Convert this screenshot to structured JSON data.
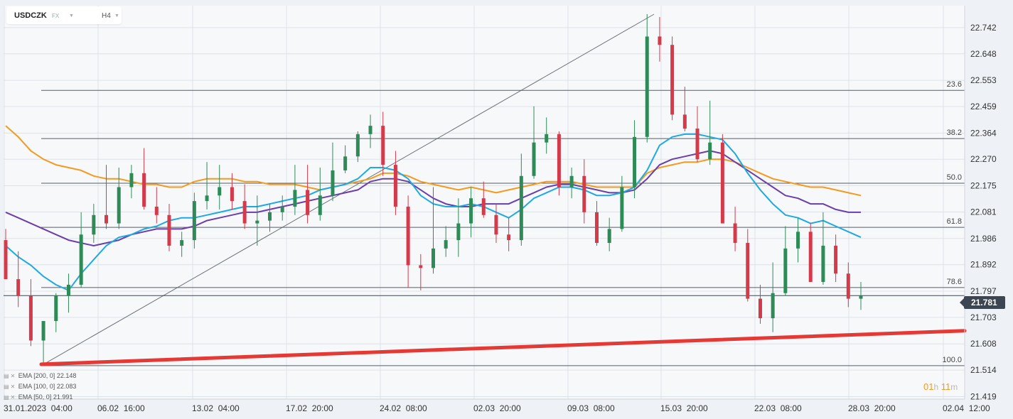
{
  "header": {
    "symbol": "USDCZK",
    "market": "FX",
    "timeframe": "H4"
  },
  "current_price": "21.781",
  "timer": {
    "hours": "01",
    "h_unit": "h",
    "minutes": "11",
    "m_unit": "m"
  },
  "legend": [
    {
      "label": "EMA [200, 0]",
      "value": "22.148"
    },
    {
      "label": "EMA [100, 0]",
      "value": "22.083"
    },
    {
      "label": "EMA [50, 0]",
      "value": "21.991"
    }
  ],
  "colors": {
    "up": "#2e8b57",
    "down": "#d33a4a",
    "ema200": "#f39a1f",
    "ema100": "#6a3fa8",
    "ema50": "#1fa9e1",
    "trendline": "#e53935",
    "grid": "#dde2e8",
    "fib": "#555e68"
  },
  "chart_data": {
    "type": "candlestick",
    "y_range": [
      21.41,
      22.79
    ],
    "y_ticks": [
      "22.742",
      "22.648",
      "22.553",
      "22.459",
      "22.364",
      "22.270",
      "22.175",
      "22.081",
      "21.986",
      "21.892",
      "21.797",
      "21.703",
      "21.608",
      "21.514",
      "21.419"
    ],
    "x_labels": [
      "31.01.2023  04:00",
      "06.02  16:00",
      "13.02  04:00",
      "17.02  20:00",
      "24.02  08:00",
      "02.03  20:00",
      "09.03  08:00",
      "15.03  20:00",
      "22.03  08:00",
      "28.03  20:00",
      "02.04  12:00"
    ],
    "fib_levels": [
      {
        "label": "23.6",
        "value": 22.517
      },
      {
        "label": "38.2",
        "value": 22.344
      },
      {
        "label": "50.0",
        "value": 22.184
      },
      {
        "label": "61.8",
        "value": 22.026
      },
      {
        "label": "78.6",
        "value": 21.81
      },
      {
        "label": "100.0",
        "value": 21.53
      }
    ],
    "fib_swing": {
      "from_value": 21.53,
      "to_value": 22.79
    },
    "support_trendline": {
      "start_value": 21.535,
      "end_value": 21.655
    },
    "candles": {
      "open": [
        21.98,
        21.84,
        21.78,
        21.62,
        21.69,
        21.78,
        21.82,
        22.0,
        22.07,
        22.04,
        22.17,
        22.22,
        22.1,
        22.07,
        21.96,
        21.98,
        22.12,
        22.14,
        22.17,
        22.12,
        22.04,
        22.05,
        22.08,
        22.1,
        22.16,
        22.07,
        22.14,
        22.23,
        22.28,
        22.36,
        22.39,
        22.25,
        22.1,
        21.89,
        21.88,
        21.95,
        21.98,
        22.04,
        22.13,
        22.07,
        22.0,
        21.98,
        22.21,
        22.33,
        22.36,
        22.17,
        22.21,
        22.08,
        21.97,
        22.02,
        22.17,
        22.35,
        22.71,
        22.68,
        22.43,
        22.38,
        22.27,
        22.33,
        22.04,
        21.97,
        21.77,
        21.7,
        21.79,
        21.95,
        22.01,
        21.83,
        21.96,
        21.86,
        21.77
      ],
      "high": [
        22.02,
        21.94,
        21.84,
        21.67,
        21.79,
        21.86,
        22.08,
        22.11,
        22.25,
        22.24,
        22.25,
        22.31,
        22.17,
        22.11,
        22.01,
        22.15,
        22.26,
        22.25,
        22.22,
        22.18,
        22.14,
        22.11,
        22.14,
        22.25,
        22.25,
        22.24,
        22.33,
        22.32,
        22.37,
        22.43,
        22.44,
        22.3,
        22.14,
        21.93,
        22.17,
        22.03,
        22.13,
        22.17,
        22.19,
        22.11,
        22.06,
        22.29,
        22.46,
        22.42,
        22.37,
        22.24,
        22.27,
        22.12,
        22.06,
        22.21,
        22.41,
        22.79,
        22.78,
        22.71,
        22.53,
        22.46,
        22.48,
        22.36,
        22.1,
        22.02,
        21.82,
        21.9,
        22.03,
        22.06,
        22.04,
        22.08,
        22.0,
        21.9,
        21.83
      ],
      "low": [
        21.84,
        21.74,
        21.6,
        21.54,
        21.65,
        21.72,
        21.81,
        21.97,
        22.02,
        22.02,
        22.13,
        22.09,
        22.04,
        21.94,
        21.92,
        21.95,
        22.09,
        22.09,
        22.09,
        22.02,
        21.96,
        22.01,
        22.05,
        22.07,
        22.04,
        22.05,
        22.12,
        22.22,
        22.26,
        22.31,
        22.21,
        22.07,
        21.81,
        21.8,
        21.86,
        21.92,
        21.92,
        21.99,
        22.06,
        21.97,
        21.94,
        21.96,
        22.2,
        22.29,
        22.14,
        22.13,
        22.04,
        21.96,
        21.94,
        22.01,
        22.13,
        22.33,
        22.62,
        22.41,
        22.37,
        22.26,
        22.25,
        22.04,
        21.94,
        21.76,
        21.68,
        21.65,
        21.78,
        21.9,
        21.85,
        21.82,
        21.83,
        21.74,
        21.73
      ],
      "close": [
        21.84,
        21.78,
        21.62,
        21.69,
        21.78,
        21.82,
        22.0,
        22.07,
        22.04,
        22.17,
        22.22,
        22.1,
        22.07,
        21.96,
        21.98,
        22.12,
        22.14,
        22.17,
        22.12,
        22.04,
        22.05,
        22.08,
        22.1,
        22.16,
        22.07,
        22.14,
        22.23,
        22.28,
        22.36,
        22.39,
        22.25,
        22.1,
        21.89,
        21.88,
        21.95,
        21.98,
        22.04,
        22.13,
        22.07,
        22.0,
        21.98,
        22.21,
        22.33,
        22.36,
        22.17,
        22.21,
        22.08,
        21.97,
        22.02,
        22.17,
        22.35,
        22.71,
        22.68,
        22.43,
        22.38,
        22.27,
        22.33,
        22.04,
        21.97,
        21.77,
        21.7,
        21.79,
        21.95,
        22.01,
        21.83,
        21.96,
        21.86,
        21.77,
        21.78
      ]
    },
    "ema_series": [
      {
        "key": "ema200",
        "values": [
          22.39,
          22.35,
          22.3,
          22.27,
          22.25,
          22.24,
          22.23,
          22.21,
          22.2,
          22.2,
          22.19,
          22.18,
          22.18,
          22.17,
          22.17,
          22.19,
          22.2,
          22.2,
          22.2,
          22.19,
          22.19,
          22.18,
          22.18,
          22.18,
          22.17,
          22.16,
          22.17,
          22.18,
          22.19,
          22.2,
          22.22,
          22.22,
          22.21,
          22.19,
          22.18,
          22.17,
          22.16,
          22.17,
          22.16,
          22.15,
          22.16,
          22.17,
          22.18,
          22.19,
          22.19,
          22.19,
          22.18,
          22.17,
          22.17,
          22.17,
          22.17,
          22.22,
          22.24,
          22.25,
          22.26,
          22.26,
          22.27,
          22.27,
          22.26,
          22.24,
          22.22,
          22.2,
          22.19,
          22.18,
          22.17,
          22.17,
          22.16,
          22.15,
          22.14
        ]
      },
      {
        "key": "ema100",
        "values": [
          22.08,
          22.06,
          22.04,
          22.02,
          22.0,
          21.98,
          21.97,
          21.96,
          21.97,
          21.98,
          22.0,
          22.01,
          22.02,
          22.02,
          22.02,
          22.03,
          22.05,
          22.06,
          22.07,
          22.08,
          22.08,
          22.09,
          22.1,
          22.11,
          22.12,
          22.13,
          22.14,
          22.15,
          22.16,
          22.19,
          22.2,
          22.2,
          22.19,
          22.16,
          22.13,
          22.11,
          22.1,
          22.1,
          22.11,
          22.11,
          22.11,
          22.13,
          22.15,
          22.17,
          22.18,
          22.18,
          22.17,
          22.16,
          22.15,
          22.15,
          22.16,
          22.2,
          22.25,
          22.27,
          22.28,
          22.29,
          22.3,
          22.29,
          22.26,
          22.23,
          22.2,
          22.17,
          22.14,
          22.13,
          22.11,
          22.11,
          22.09,
          22.08,
          22.08
        ]
      },
      {
        "key": "ema50",
        "values": [
          21.96,
          21.92,
          21.89,
          21.85,
          21.82,
          21.8,
          21.86,
          21.91,
          21.96,
          21.99,
          22.0,
          22.02,
          22.03,
          22.05,
          22.06,
          22.06,
          22.07,
          22.08,
          22.09,
          22.1,
          22.1,
          22.11,
          22.12,
          22.13,
          22.14,
          22.16,
          22.17,
          22.18,
          22.2,
          22.24,
          22.24,
          22.23,
          22.2,
          22.14,
          22.11,
          22.1,
          22.1,
          22.11,
          22.1,
          22.08,
          22.06,
          22.09,
          22.13,
          22.15,
          22.17,
          22.17,
          22.16,
          22.14,
          22.14,
          22.15,
          22.17,
          22.23,
          22.32,
          22.35,
          22.36,
          22.36,
          22.35,
          22.34,
          22.29,
          22.22,
          22.16,
          22.11,
          22.07,
          22.06,
          22.04,
          22.05,
          22.03,
          22.01,
          21.99
        ]
      }
    ]
  }
}
